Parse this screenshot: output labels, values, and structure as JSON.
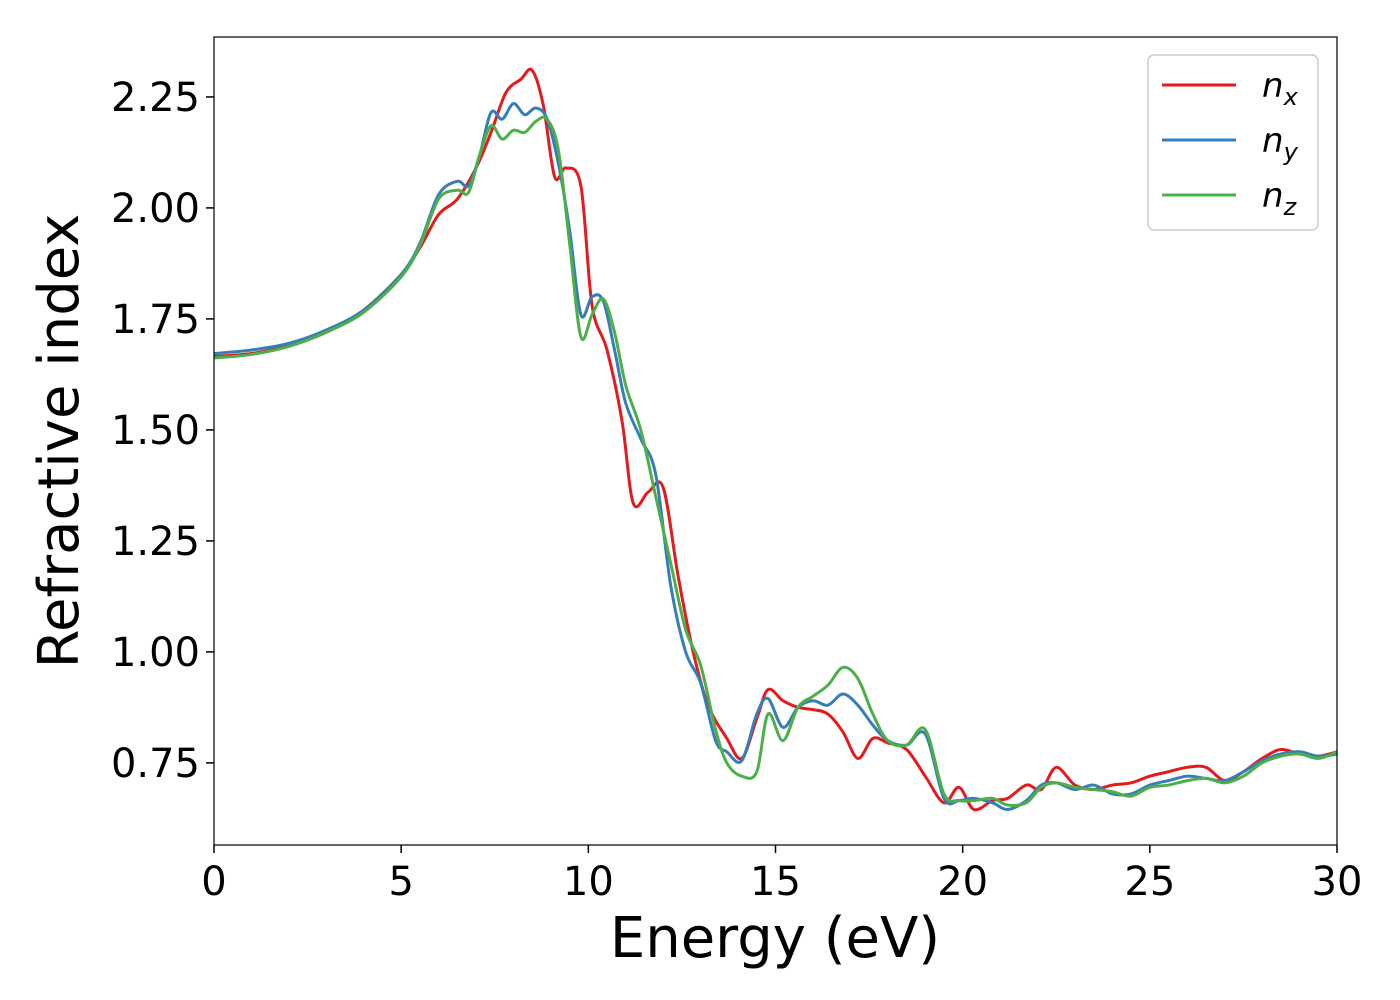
{
  "chart_data": {
    "type": "line",
    "xlabel": "Energy (eV)",
    "ylabel": "Refractive index",
    "xlim": [
      0,
      30
    ],
    "ylim": [
      0.565,
      2.385
    ],
    "xticks": [
      0,
      5,
      10,
      15,
      20,
      25,
      30
    ],
    "yticks": [
      0.75,
      1.0,
      1.25,
      1.5,
      1.75,
      2.0,
      2.25
    ],
    "xtick_labels": [
      "0",
      "5",
      "10",
      "15",
      "20",
      "25",
      "30"
    ],
    "ytick_labels": [
      "0.75",
      "1.00",
      "1.25",
      "1.50",
      "1.75",
      "2.00",
      "2.25"
    ],
    "grid": false,
    "legend_position": "top-right",
    "series": [
      {
        "name": "n_x",
        "legend_base": "n",
        "legend_sub": "x",
        "color": "#e41a1c",
        "x": [
          0,
          1,
          2,
          3,
          4,
          5,
          5.5,
          6,
          6.5,
          7,
          7.4,
          7.8,
          8.2,
          8.5,
          8.8,
          9.1,
          9.4,
          9.8,
          10.1,
          10.5,
          10.9,
          11.2,
          11.6,
          12,
          12.4,
          12.8,
          13.2,
          13.7,
          14.1,
          14.5,
          14.8,
          15.2,
          15.6,
          16,
          16.4,
          16.8,
          17.2,
          17.6,
          18,
          18.5,
          19,
          19.5,
          19.9,
          20.3,
          20.8,
          21.2,
          21.7,
          22.1,
          22.5,
          23,
          23.5,
          24,
          24.5,
          25,
          25.5,
          26,
          26.5,
          27,
          27.5,
          28,
          28.5,
          29,
          29.5,
          30
        ],
        "y": [
          1.665,
          1.672,
          1.69,
          1.72,
          1.77,
          1.85,
          1.91,
          1.985,
          2.02,
          2.09,
          2.17,
          2.26,
          2.29,
          2.31,
          2.23,
          2.07,
          2.09,
          2.05,
          1.78,
          1.68,
          1.52,
          1.335,
          1.36,
          1.37,
          1.17,
          1.0,
          0.88,
          0.805,
          0.76,
          0.85,
          0.915,
          0.89,
          0.875,
          0.87,
          0.86,
          0.82,
          0.76,
          0.805,
          0.795,
          0.78,
          0.72,
          0.66,
          0.695,
          0.645,
          0.665,
          0.67,
          0.7,
          0.69,
          0.74,
          0.7,
          0.69,
          0.7,
          0.705,
          0.72,
          0.73,
          0.74,
          0.74,
          0.71,
          0.73,
          0.76,
          0.78,
          0.77,
          0.765,
          0.775
        ]
      },
      {
        "name": "n_y",
        "legend_base": "n",
        "legend_sub": "y",
        "color": "#377eb8",
        "x": [
          0,
          1,
          2,
          3,
          4,
          5,
          5.5,
          6,
          6.5,
          6.8,
          7.1,
          7.4,
          7.7,
          8,
          8.3,
          8.6,
          8.9,
          9.2,
          9.5,
          9.8,
          10.1,
          10.4,
          10.7,
          11,
          11.4,
          11.8,
          12.2,
          12.6,
          13,
          13.4,
          13.7,
          14.1,
          14.5,
          14.8,
          15.2,
          15.6,
          16,
          16.4,
          16.8,
          17.2,
          17.6,
          18,
          18.5,
          19,
          19.5,
          19.9,
          20.3,
          20.8,
          21.2,
          21.7,
          22.1,
          22.5,
          23,
          23.5,
          24,
          24.5,
          25,
          25.5,
          26,
          26.5,
          27,
          27.5,
          28,
          28.5,
          29,
          29.5,
          30
        ],
        "y": [
          1.672,
          1.68,
          1.695,
          1.725,
          1.77,
          1.85,
          1.92,
          2.03,
          2.06,
          2.05,
          2.12,
          2.215,
          2.2,
          2.235,
          2.21,
          2.225,
          2.2,
          2.1,
          1.95,
          1.76,
          1.8,
          1.79,
          1.68,
          1.56,
          1.48,
          1.4,
          1.15,
          1.0,
          0.93,
          0.8,
          0.775,
          0.755,
          0.86,
          0.895,
          0.83,
          0.875,
          0.89,
          0.88,
          0.905,
          0.88,
          0.835,
          0.8,
          0.79,
          0.815,
          0.67,
          0.665,
          0.67,
          0.66,
          0.645,
          0.665,
          0.7,
          0.705,
          0.69,
          0.7,
          0.68,
          0.68,
          0.7,
          0.71,
          0.72,
          0.715,
          0.71,
          0.73,
          0.755,
          0.77,
          0.775,
          0.765,
          0.77
        ]
      },
      {
        "name": "n_z",
        "legend_base": "n",
        "legend_sub": "z",
        "color": "#4daf4a",
        "x": [
          0,
          1,
          2,
          3,
          4,
          5,
          5.5,
          6,
          6.5,
          6.8,
          7.1,
          7.4,
          7.7,
          8,
          8.3,
          8.6,
          8.9,
          9.2,
          9.5,
          9.8,
          10.1,
          10.4,
          10.7,
          11,
          11.4,
          11.8,
          12.2,
          12.6,
          13,
          13.4,
          13.7,
          14.1,
          14.5,
          14.8,
          15.2,
          15.6,
          16,
          16.4,
          16.8,
          17.2,
          17.6,
          18,
          18.5,
          19,
          19.5,
          19.9,
          20.3,
          20.8,
          21.2,
          21.7,
          22.1,
          22.5,
          23,
          23.5,
          24,
          24.5,
          25,
          25.5,
          26,
          26.5,
          27,
          27.5,
          28,
          28.5,
          29,
          29.5,
          30
        ],
        "y": [
          1.662,
          1.67,
          1.688,
          1.72,
          1.765,
          1.845,
          1.915,
          2.02,
          2.04,
          2.035,
          2.12,
          2.185,
          2.155,
          2.175,
          2.17,
          2.195,
          2.2,
          2.13,
          1.92,
          1.71,
          1.76,
          1.795,
          1.72,
          1.6,
          1.5,
          1.35,
          1.2,
          1.05,
          0.97,
          0.825,
          0.75,
          0.72,
          0.73,
          0.86,
          0.8,
          0.875,
          0.9,
          0.925,
          0.965,
          0.94,
          0.86,
          0.8,
          0.79,
          0.825,
          0.68,
          0.665,
          0.665,
          0.67,
          0.655,
          0.66,
          0.695,
          0.705,
          0.695,
          0.69,
          0.685,
          0.675,
          0.695,
          0.7,
          0.71,
          0.715,
          0.705,
          0.72,
          0.75,
          0.765,
          0.77,
          0.76,
          0.775
        ]
      }
    ]
  }
}
